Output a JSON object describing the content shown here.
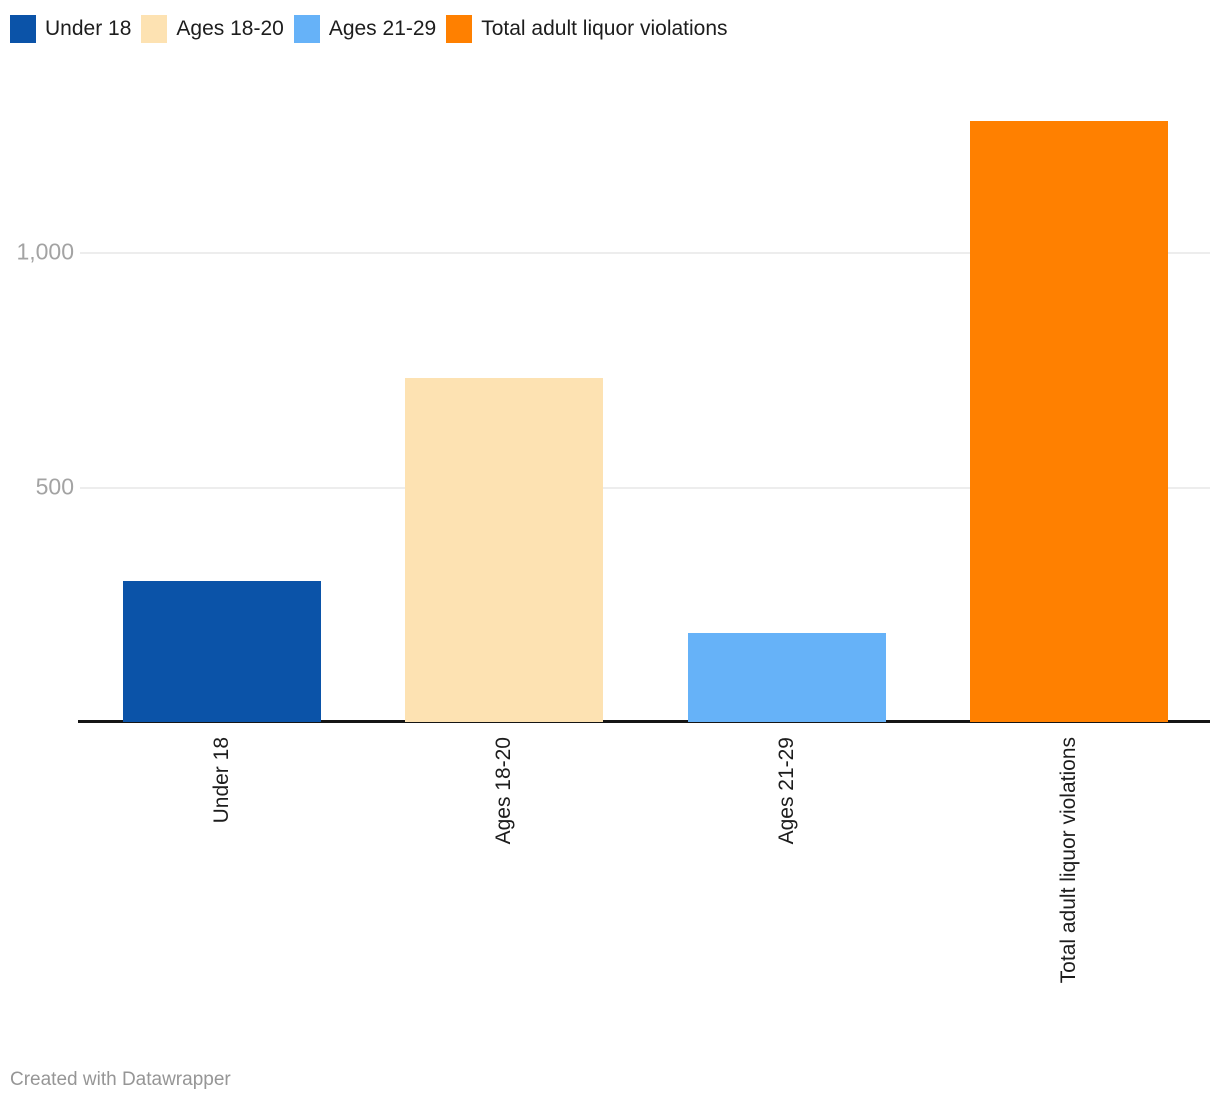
{
  "chart": {
    "title": "",
    "footer": "Created with Datawrapper"
  },
  "chart_data": {
    "type": "bar",
    "categories": [
      "Under 18",
      "Ages 18-20",
      "Ages 21-29",
      "Total adult liquor violations"
    ],
    "values": [
      300,
      735,
      190,
      1282
    ],
    "bar_colors": [
      "#0b53a8",
      "#fde2b2",
      "#66b2f8",
      "#ff8000"
    ],
    "legend": [
      {
        "label": "Under 18",
        "color": "#0b53a8"
      },
      {
        "label": "Ages 18-20",
        "color": "#fde2b2"
      },
      {
        "label": "Ages 21-29",
        "color": "#66b2f8"
      },
      {
        "label": "Total adult liquor violations",
        "color": "#ff8000"
      }
    ],
    "legend_position": "top",
    "yticks": [
      {
        "label": "500",
        "value": 500
      },
      {
        "label": "1,000",
        "value": 1000
      }
    ],
    "ylim": [
      0,
      1360
    ],
    "grid": true,
    "xlabel": "",
    "ylabel": "",
    "axis_color": "#151515",
    "gridline_color": "#ededed",
    "tick_label_color": "#a3a3a3"
  }
}
